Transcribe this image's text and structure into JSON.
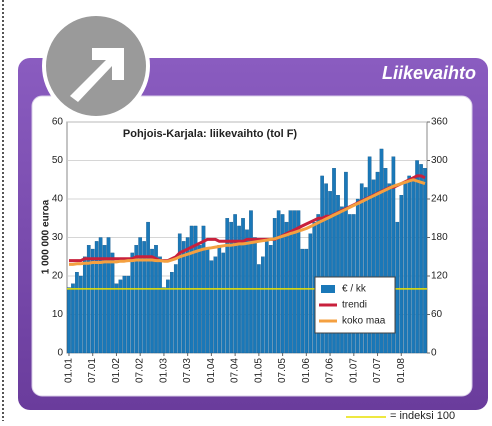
{
  "panel": {
    "title": "Liikevaihto"
  },
  "chart_data": {
    "type": "bar",
    "title": "Pohjois-Karjala: liikevaihto (tol F)",
    "ylabel": "1 000 000 euroa",
    "categories": [
      "01.01",
      null,
      null,
      null,
      null,
      null,
      "07.01",
      null,
      null,
      null,
      null,
      null,
      "01.02",
      null,
      null,
      null,
      null,
      null,
      "07.02",
      null,
      null,
      null,
      null,
      null,
      "01.03",
      null,
      null,
      null,
      null,
      null,
      "07.03",
      null,
      null,
      null,
      null,
      null,
      "01.04",
      null,
      null,
      null,
      null,
      null,
      "07.04",
      null,
      null,
      null,
      null,
      null,
      "01.05",
      null,
      null,
      null,
      null,
      null,
      "07.05",
      null,
      null,
      null,
      null,
      null,
      "01.06",
      null,
      null,
      null,
      null,
      null,
      "07.06",
      null,
      null,
      null,
      null,
      null,
      "01.07",
      null,
      null,
      null,
      null,
      null,
      "07.07",
      null,
      null,
      null,
      null,
      null,
      "01.08",
      null,
      null,
      null,
      null,
      null,
      null
    ],
    "series": [
      {
        "name": "€ / kk",
        "type": "bar",
        "color": "#1a78b8",
        "axis": "y",
        "values": [
          17,
          18,
          21,
          20,
          25,
          28,
          27,
          29,
          30,
          28,
          30,
          26,
          18,
          19,
          20,
          20,
          26,
          28,
          30,
          29,
          34,
          27,
          28,
          25,
          17,
          19,
          21,
          23,
          31,
          29,
          30,
          33,
          33,
          28,
          33,
          27,
          24,
          25,
          28,
          26,
          35,
          34,
          36,
          33,
          35,
          32,
          37,
          30,
          23,
          25,
          29,
          28,
          35,
          37,
          36,
          34,
          37,
          37,
          37,
          27,
          27,
          31,
          34,
          36,
          46,
          44,
          42,
          48,
          41,
          38,
          47,
          36,
          36,
          40,
          44,
          43,
          51,
          45,
          47,
          53,
          48,
          44,
          51,
          34,
          41,
          44,
          46,
          45,
          50,
          49,
          48
        ]
      },
      {
        "name": "trendi",
        "type": "line",
        "color": "#c8203c",
        "axis": "y",
        "values": [
          24,
          24,
          24,
          24,
          24.5,
          24.5,
          24.5,
          24.5,
          24.5,
          24.5,
          24.5,
          24.5,
          24.5,
          24.5,
          24.5,
          24.5,
          24.5,
          25,
          25,
          25,
          25,
          25,
          24.5,
          24,
          24,
          24,
          24.5,
          25,
          26,
          26.5,
          27,
          27.5,
          28,
          28.5,
          29,
          29.5,
          29.5,
          29.5,
          29,
          29,
          29,
          29,
          29,
          29,
          29,
          29.5,
          29.5,
          29.5,
          29.5,
          29.5,
          29.5,
          29.5,
          29.5,
          30,
          30.5,
          31,
          31.5,
          32,
          32.5,
          33,
          33.5,
          34,
          34.5,
          35,
          35,
          35.5,
          35.5,
          36,
          36.5,
          37,
          37.5,
          38,
          38.5,
          39,
          39.5,
          40,
          40.5,
          41,
          41.5,
          42,
          42.5,
          43,
          43,
          43.5,
          44,
          44.5,
          45,
          45.5,
          46,
          46,
          45.5
        ]
      },
      {
        "name": "koko maa",
        "type": "line",
        "color": "#f4a040",
        "axis": "y2",
        "values": [
          138,
          138,
          139,
          139,
          140,
          140,
          141,
          141,
          141,
          142,
          142,
          142,
          142,
          143,
          143,
          144,
          144,
          145,
          145,
          145,
          145,
          145,
          144,
          144,
          143,
          143,
          145,
          147,
          150,
          152,
          154,
          156,
          158,
          160,
          162,
          163,
          164,
          165,
          166,
          167,
          168,
          168,
          169,
          170,
          170,
          171,
          172,
          173,
          174,
          175,
          176,
          177,
          178,
          180,
          182,
          184,
          186,
          188,
          190,
          192,
          194,
          197,
          200,
          203,
          206,
          209,
          212,
          215,
          218,
          221,
          224,
          227,
          230,
          233,
          236,
          239,
          242,
          245,
          248,
          251,
          254,
          257,
          260,
          262,
          264,
          266,
          268,
          270,
          268,
          266,
          264
        ]
      }
    ],
    "ylim": [
      0,
      60
    ],
    "yticks": [
      0,
      10,
      20,
      30,
      40,
      50,
      60
    ],
    "y2lim": [
      0,
      360
    ],
    "y2ticks": [
      0,
      60,
      120,
      180,
      240,
      300,
      360
    ],
    "grid": true,
    "legend": "lower right",
    "reference_line": {
      "axis": "y2",
      "value": 100,
      "label": "= indeksi 100",
      "color": "#e8e000"
    }
  }
}
